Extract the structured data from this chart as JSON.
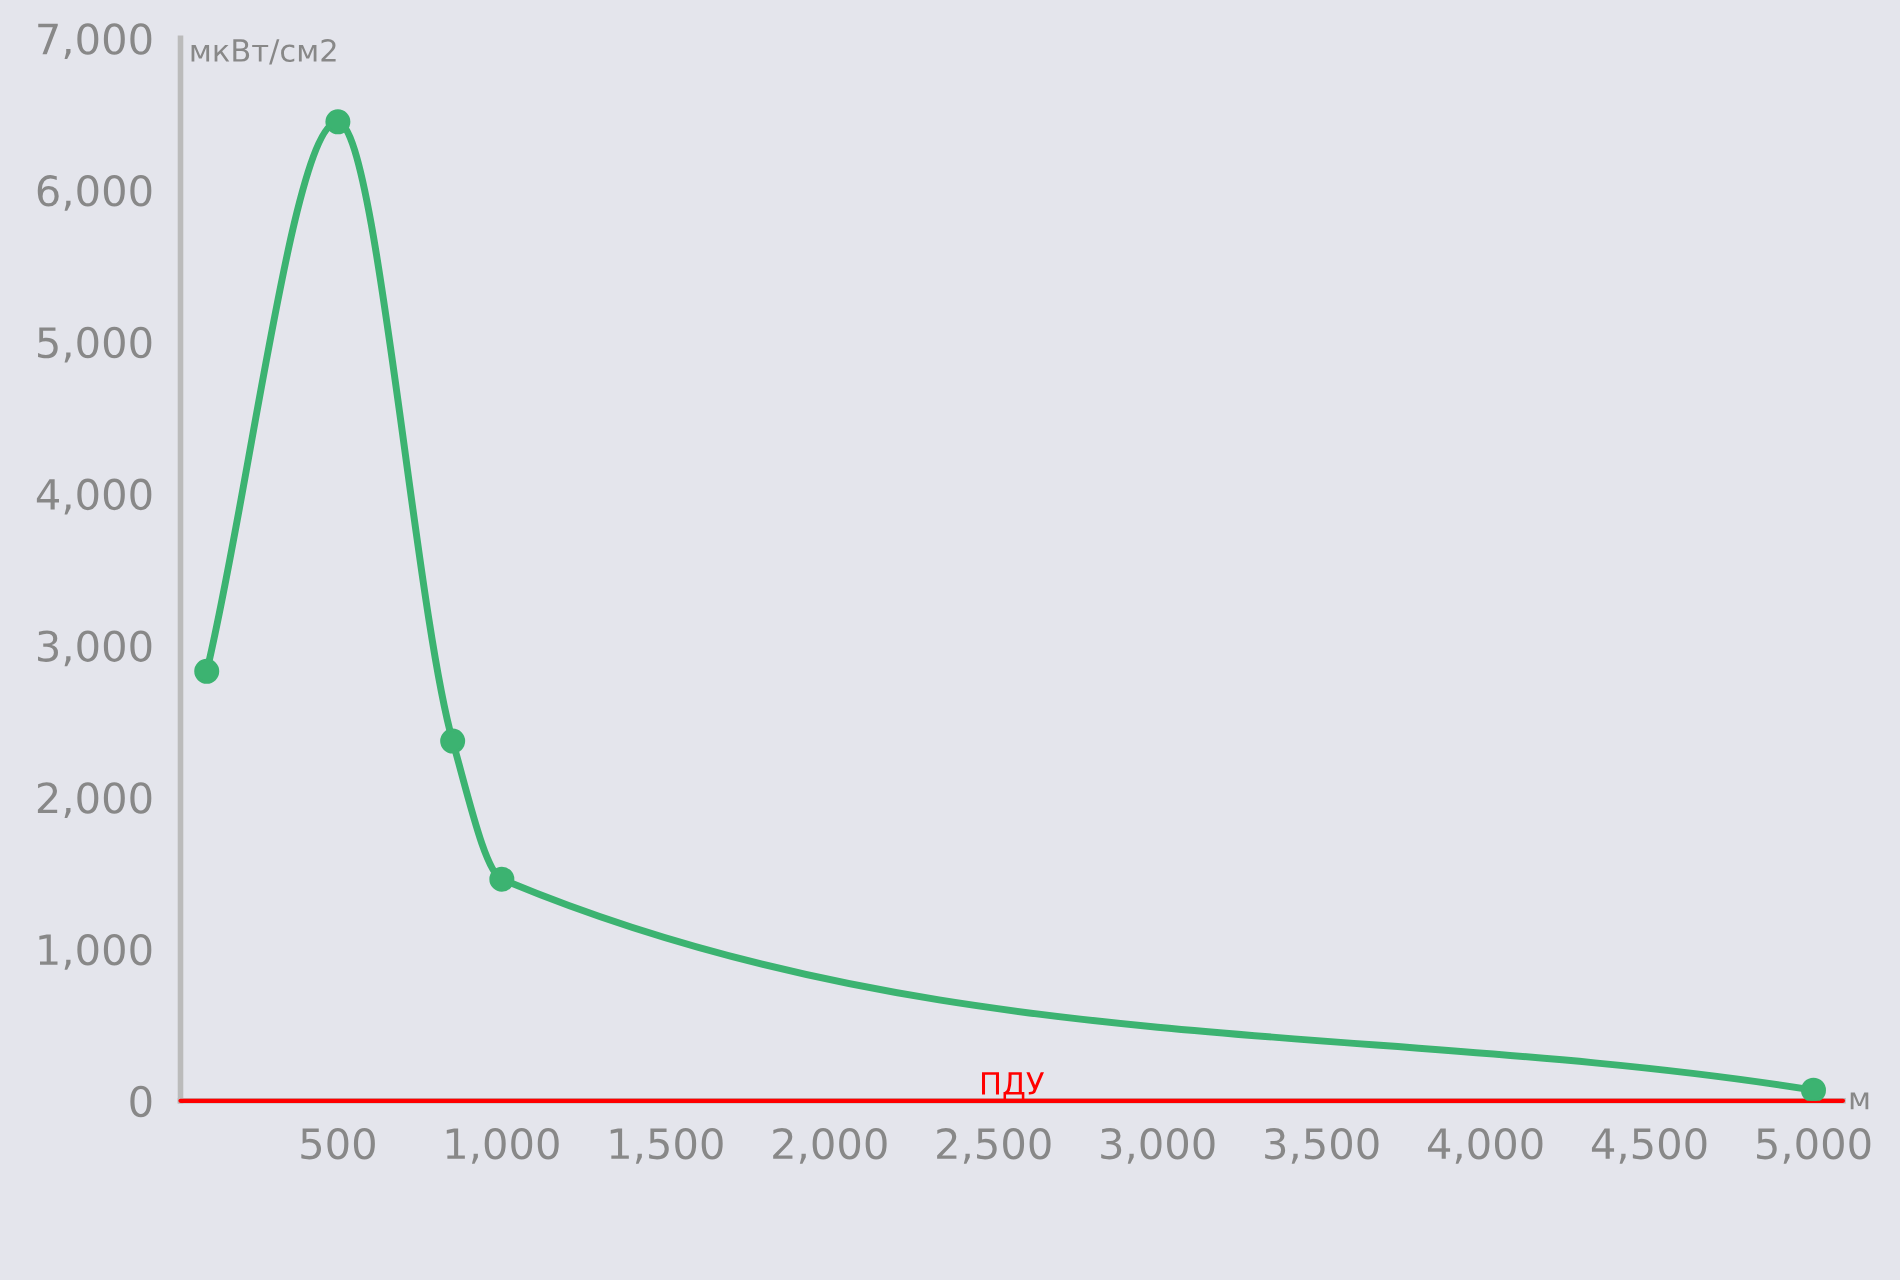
{
  "chart_data": {
    "type": "line",
    "xlabel": "м",
    "ylabel": "мкВт/см2",
    "x": [
      100,
      500,
      850,
      1000,
      5000
    ],
    "series": [
      {
        "color": "#3cb371",
        "values": [
          2830,
          6450,
          2370,
          1460,
          70
        ]
      }
    ],
    "marker": "circle",
    "line_style": "solid",
    "grid": false,
    "xlim": [
      20,
      5090
    ],
    "ylim": [
      0,
      7000
    ],
    "xticks": [
      500,
      {
        "value": 1000,
        "label": "1,000"
      },
      {
        "value": 1500,
        "label": "1,500"
      },
      {
        "value": 2000,
        "label": "2,000"
      },
      {
        "value": 2500,
        "label": "2,500"
      },
      {
        "value": 3000,
        "label": "3,000"
      },
      {
        "value": 3500,
        "label": "3,500"
      },
      {
        "value": 4000,
        "label": "4,000"
      },
      {
        "value": 4500,
        "label": "4,500"
      },
      {
        "value": 5000,
        "label": "5,000"
      }
    ],
    "yticks": [
      0,
      {
        "value": 1000,
        "label": "1,000"
      },
      {
        "value": 2000,
        "label": "2,000"
      },
      {
        "value": 3000,
        "label": "3,000"
      },
      {
        "value": 4000,
        "label": "4,000"
      },
      {
        "value": 5000,
        "label": "5,000"
      },
      {
        "value": 6000,
        "label": "6,000"
      },
      {
        "value": 7000,
        "label": "7,000"
      }
    ],
    "ref_lines": [
      {
        "axis": "y",
        "value": 0,
        "label": "ПДУ",
        "color": "#ff0000"
      }
    ]
  }
}
